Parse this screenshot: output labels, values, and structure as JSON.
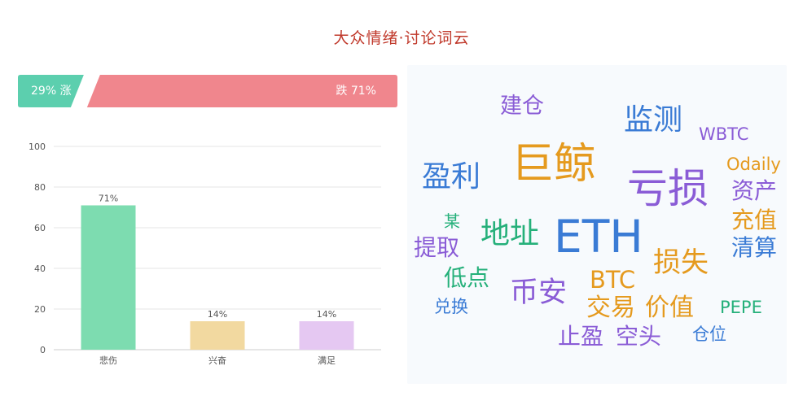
{
  "title": "大众情绪·讨论词云",
  "sentiment": {
    "up_label": "29% 涨",
    "down_label": "跌 71%",
    "up_fraction": 0.29,
    "up_color": "#5ccfae",
    "down_color": "#f0868d"
  },
  "chart_data": {
    "type": "bar",
    "categories": [
      "悲伤",
      "兴奋",
      "满足"
    ],
    "values": [
      71,
      14,
      14
    ],
    "value_labels": [
      "71%",
      "14%",
      "14%"
    ],
    "colors": [
      "#7ddcb0",
      "#f2d9a0",
      "#e5c8f2"
    ],
    "ylim": [
      0,
      100
    ],
    "yticks": [
      0,
      20,
      40,
      60,
      80,
      100
    ],
    "grid": true
  },
  "word_cloud": [
    {
      "text": "建仓",
      "color": "#8a5cd6"
    },
    {
      "text": "监测",
      "color": "#3a7bd5"
    },
    {
      "text": "WBTC",
      "color": "#8a5cd6"
    },
    {
      "text": "巨鲸",
      "color": "#e59a1e"
    },
    {
      "text": "Odaily",
      "color": "#e59a1e"
    },
    {
      "text": "盈利",
      "color": "#3a7bd5"
    },
    {
      "text": "亏损",
      "color": "#8a5cd6"
    },
    {
      "text": "资产",
      "color": "#8a5cd6"
    },
    {
      "text": "某",
      "color": "#25b07a"
    },
    {
      "text": "充值",
      "color": "#e59a1e"
    },
    {
      "text": "地址",
      "color": "#25b07a"
    },
    {
      "text": "ETH",
      "color": "#3a7bd5"
    },
    {
      "text": "提取",
      "color": "#8a5cd6"
    },
    {
      "text": "清算",
      "color": "#3a7bd5"
    },
    {
      "text": "损失",
      "color": "#e59a1e"
    },
    {
      "text": "低点",
      "color": "#25b07a"
    },
    {
      "text": "BTC",
      "color": "#e59a1e"
    },
    {
      "text": "币安",
      "color": "#8a5cd6"
    },
    {
      "text": "兑换",
      "color": "#3a7bd5"
    },
    {
      "text": "交易",
      "color": "#e59a1e"
    },
    {
      "text": "价值",
      "color": "#e59a1e"
    },
    {
      "text": "PEPE",
      "color": "#25b07a"
    },
    {
      "text": "止盈",
      "color": "#8a5cd6"
    },
    {
      "text": "空头",
      "color": "#8a5cd6"
    },
    {
      "text": "仓位",
      "color": "#3a7bd5"
    }
  ]
}
